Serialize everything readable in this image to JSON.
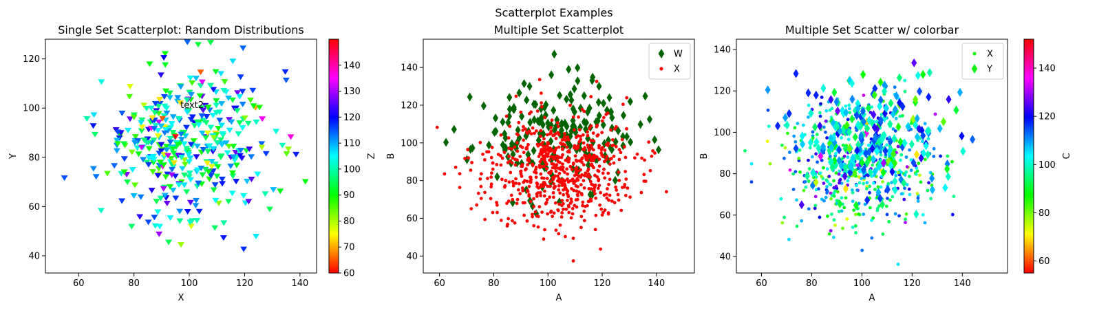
{
  "suptitle": "Scatterplot Examples",
  "colormap": "hsv",
  "chart_data": [
    {
      "type": "scatter",
      "title": "Single Set Scatterplot: Random Distributions",
      "xlabel": "X",
      "ylabel": "Y",
      "xlim": [
        48,
        146
      ],
      "ylim": [
        33,
        128
      ],
      "xticks": [
        60,
        80,
        100,
        120,
        140
      ],
      "yticks": [
        40,
        60,
        80,
        100,
        120
      ],
      "grid": false,
      "marker": "triangle-down",
      "annotations": [
        {
          "text": "text2",
          "x": 101,
          "y": 100
        }
      ],
      "colorbar": {
        "label": "Z",
        "range": [
          60,
          150
        ],
        "ticks": [
          60,
          70,
          80,
          90,
          100,
          110,
          120,
          130,
          140
        ]
      },
      "points": {
        "n": 420,
        "x_mean": 100,
        "x_sd": 15,
        "y_mean": 85,
        "y_sd": 15,
        "z_mean": 105,
        "z_sd": 14
      }
    },
    {
      "type": "scatter",
      "title": "Multiple Set Scatterplot",
      "xlabel": "A",
      "ylabel": "B",
      "xlim": [
        54,
        154
      ],
      "ylim": [
        31,
        155
      ],
      "xticks": [
        60,
        80,
        100,
        120,
        140
      ],
      "yticks": [
        40,
        60,
        80,
        100,
        120,
        140
      ],
      "grid": false,
      "legend_position": "upper right",
      "series": [
        {
          "name": "W",
          "marker": "diamond",
          "color": "#006400",
          "n": 190,
          "x_mean": 103,
          "x_sd": 15,
          "y_mean": 104,
          "y_sd": 14
        },
        {
          "name": "X",
          "marker": "circle",
          "color": "#ff0000",
          "n": 650,
          "x_mean": 103,
          "x_sd": 14,
          "y_mean": 85,
          "y_sd": 15
        }
      ]
    },
    {
      "type": "scatter",
      "title": "Multiple Set Scatter w/ colorbar",
      "xlabel": "A",
      "ylabel": "B",
      "xlim": [
        50,
        158
      ],
      "ylim": [
        32,
        145
      ],
      "xticks": [
        60,
        80,
        100,
        120,
        140
      ],
      "yticks": [
        40,
        60,
        80,
        100,
        120,
        140
      ],
      "grid": false,
      "legend_position": "upper right",
      "colorbar": {
        "label": "C",
        "range": [
          55,
          152
        ],
        "ticks": [
          60,
          80,
          100,
          120,
          140
        ]
      },
      "series": [
        {
          "name": "X",
          "marker": "circle",
          "n": 520,
          "x_mean": 100,
          "x_sd": 15,
          "y_mean": 85,
          "y_sd": 15,
          "c_mean": 103,
          "c_sd": 13
        },
        {
          "name": "Y",
          "marker": "diamond",
          "n": 260,
          "x_mean": 102,
          "x_sd": 14,
          "y_mean": 98,
          "y_sd": 14,
          "c_mean": 103,
          "c_sd": 13
        }
      ]
    }
  ]
}
